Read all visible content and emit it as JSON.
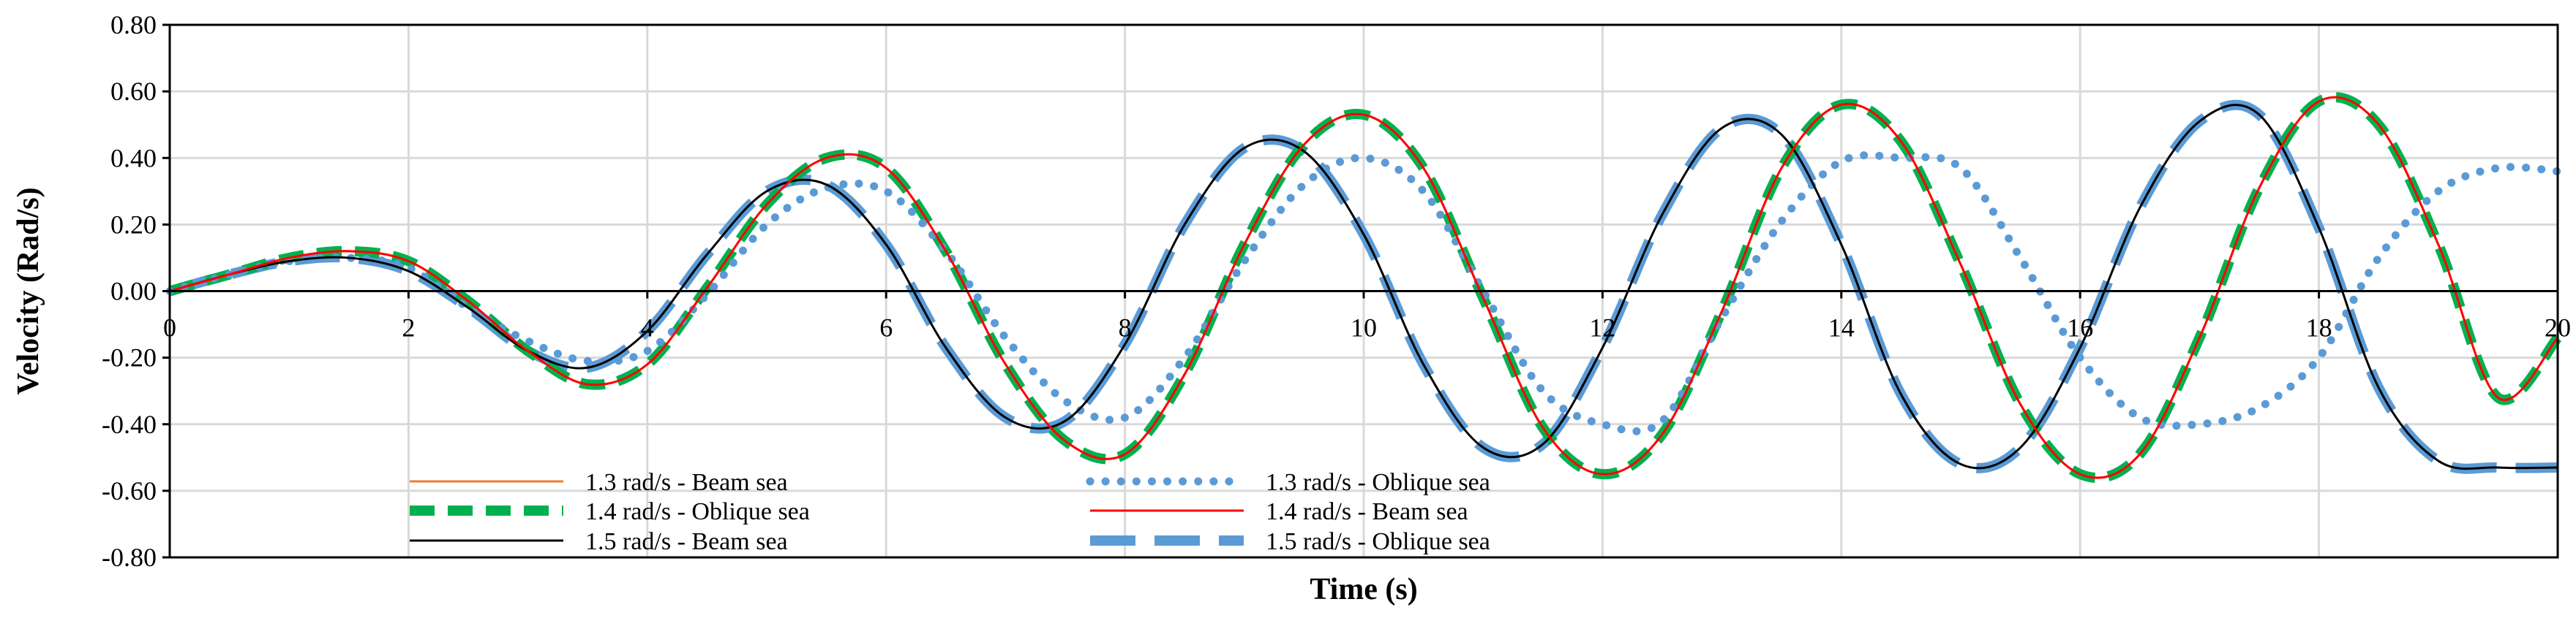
{
  "chart_data": {
    "type": "line",
    "title": "",
    "xlabel": "Time (s)",
    "ylabel": "Velocity (Rad/s)",
    "xlim": [
      0,
      20
    ],
    "ylim": [
      -0.8,
      0.8
    ],
    "x_ticks": [
      0,
      2,
      4,
      6,
      8,
      10,
      12,
      14,
      16,
      18,
      20
    ],
    "x_tick_labels": [
      "0",
      "2",
      "4",
      "6",
      "8",
      "10",
      "12",
      "14",
      "16",
      "18",
      "20"
    ],
    "y_ticks": [
      -0.8,
      -0.6,
      -0.4,
      -0.2,
      0,
      0.2,
      0.4,
      0.6,
      0.8
    ],
    "y_tick_labels": [
      "-0.80",
      "-0.60",
      "-0.40",
      "-0.20",
      "0.00",
      "0.20",
      "0.40",
      "0.60",
      "0.80"
    ],
    "grid": true,
    "legend_position": "bottom-left, two columns",
    "series": [
      {
        "name": "1.3 rad/s - Beam sea",
        "color": "#ED7D31",
        "style": "solid-thin",
        "legend_column": 0,
        "x": [
          0,
          0.5,
          1.0,
          1.5,
          2.0,
          2.5,
          3.0,
          3.5,
          4.0,
          4.5,
          5.0,
          5.5,
          6.0,
          6.5,
          7.0,
          7.5,
          8.0,
          8.5,
          9.0,
          9.5,
          10.0,
          10.5,
          11.0,
          11.5,
          12.0,
          12.5,
          13.0,
          13.5,
          14.0,
          14.5,
          15.0,
          15.5,
          16.0,
          16.5,
          17.0,
          17.5,
          18.0,
          18.5,
          19.0,
          19.5,
          20.0
        ],
        "values": [
          0.0,
          0.05,
          0.1,
          0.12,
          0.09,
          -0.03,
          -0.18,
          -0.28,
          -0.22,
          0.01,
          0.26,
          0.4,
          0.37,
          0.12,
          -0.22,
          -0.45,
          -0.49,
          -0.25,
          0.14,
          0.44,
          0.53,
          0.37,
          -0.02,
          -0.41,
          -0.55,
          -0.43,
          -0.06,
          0.37,
          0.56,
          0.45,
          0.08,
          -0.34,
          -0.55,
          -0.49,
          -0.14,
          0.31,
          0.57,
          0.5,
          0.14,
          -0.32,
          -0.14
        ]
      },
      {
        "name": "1.4 rad/s - Oblique sea",
        "color": "#00B050",
        "style": "thick-dashed",
        "legend_column": 0,
        "x": [
          0,
          0.5,
          1.0,
          1.5,
          2.0,
          2.5,
          3.0,
          3.5,
          4.0,
          4.5,
          5.0,
          5.5,
          6.0,
          6.5,
          7.0,
          7.5,
          8.0,
          8.5,
          9.0,
          9.5,
          10.0,
          10.5,
          11.0,
          11.5,
          12.0,
          12.5,
          13.0,
          13.5,
          14.0,
          14.5,
          15.0,
          15.5,
          16.0,
          16.5,
          17.0,
          17.5,
          18.0,
          18.5,
          19.0,
          19.5,
          20.0
        ],
        "values": [
          0.0,
          0.05,
          0.1,
          0.12,
          0.09,
          -0.03,
          -0.18,
          -0.28,
          -0.22,
          0.01,
          0.26,
          0.4,
          0.37,
          0.12,
          -0.22,
          -0.45,
          -0.49,
          -0.25,
          0.14,
          0.44,
          0.53,
          0.37,
          -0.02,
          -0.41,
          -0.55,
          -0.43,
          -0.06,
          0.37,
          0.56,
          0.45,
          0.08,
          -0.34,
          -0.55,
          -0.49,
          -0.14,
          0.31,
          0.57,
          0.5,
          0.14,
          -0.32,
          -0.14
        ]
      },
      {
        "name": "1.5 rad/s - Beam sea",
        "color": "#000000",
        "style": "solid-thin",
        "legend_column": 0,
        "x": [
          0,
          0.5,
          1.0,
          1.5,
          2.0,
          2.5,
          3.0,
          3.5,
          4.0,
          4.5,
          5.0,
          5.5,
          6.0,
          6.5,
          7.0,
          7.5,
          8.0,
          8.5,
          9.0,
          9.5,
          10.0,
          10.5,
          11.0,
          11.5,
          12.0,
          12.5,
          13.0,
          13.5,
          14.0,
          14.5,
          15.0,
          15.5,
          16.0,
          16.5,
          17.0,
          17.5,
          18.0,
          18.5,
          19.0,
          19.5,
          20.0
        ],
        "values": [
          0.0,
          0.05,
          0.09,
          0.1,
          0.06,
          -0.05,
          -0.18,
          -0.23,
          -0.12,
          0.11,
          0.3,
          0.32,
          0.14,
          -0.17,
          -0.38,
          -0.39,
          -0.16,
          0.2,
          0.43,
          0.42,
          0.17,
          -0.22,
          -0.47,
          -0.46,
          -0.17,
          0.23,
          0.49,
          0.47,
          0.14,
          -0.31,
          -0.52,
          -0.47,
          -0.17,
          0.25,
          0.51,
          0.53,
          0.19,
          -0.29,
          -0.51,
          -0.53,
          -0.53
        ]
      },
      {
        "name": "1.3 rad/s - Oblique sea",
        "color": "#5B9BD5",
        "style": "dotted",
        "legend_column": 1,
        "x": [
          0,
          0.5,
          1.0,
          1.5,
          2.0,
          2.5,
          3.0,
          3.5,
          4.0,
          4.5,
          5.0,
          5.5,
          6.0,
          6.5,
          7.0,
          7.5,
          8.0,
          8.5,
          9.0,
          9.5,
          10.0,
          10.5,
          11.0,
          11.5,
          12.0,
          12.5,
          13.0,
          13.5,
          14.0,
          14.5,
          15.0,
          15.5,
          16.0,
          16.5,
          17.0,
          17.5,
          18.0,
          18.5,
          19.0,
          19.5,
          20.0
        ],
        "values": [
          0.0,
          0.05,
          0.09,
          0.1,
          0.07,
          -0.05,
          -0.15,
          -0.21,
          -0.18,
          -0.01,
          0.2,
          0.31,
          0.3,
          0.12,
          -0.14,
          -0.33,
          -0.38,
          -0.2,
          0.09,
          0.32,
          0.4,
          0.3,
          0.0,
          -0.3,
          -0.4,
          -0.39,
          -0.08,
          0.21,
          0.39,
          0.4,
          0.37,
          0.1,
          -0.2,
          -0.38,
          -0.4,
          -0.35,
          -0.2,
          0.1,
          0.3,
          0.37,
          0.36
        ]
      },
      {
        "name": "1.4 rad/s - Beam sea",
        "color": "#FF0000",
        "style": "solid-thin",
        "legend_column": 1,
        "x": [
          0,
          0.5,
          1.0,
          1.5,
          2.0,
          2.5,
          3.0,
          3.5,
          4.0,
          4.5,
          5.0,
          5.5,
          6.0,
          6.5,
          7.0,
          7.5,
          8.0,
          8.5,
          9.0,
          9.5,
          10.0,
          10.5,
          11.0,
          11.5,
          12.0,
          12.5,
          13.0,
          13.5,
          14.0,
          14.5,
          15.0,
          15.5,
          16.0,
          16.5,
          17.0,
          17.5,
          18.0,
          18.5,
          19.0,
          19.5,
          20.0
        ],
        "values": [
          0.0,
          0.05,
          0.1,
          0.12,
          0.09,
          -0.03,
          -0.18,
          -0.28,
          -0.22,
          0.01,
          0.26,
          0.4,
          0.37,
          0.12,
          -0.22,
          -0.45,
          -0.49,
          -0.25,
          0.14,
          0.44,
          0.53,
          0.37,
          -0.02,
          -0.41,
          -0.55,
          -0.43,
          -0.06,
          0.37,
          0.56,
          0.45,
          0.08,
          -0.34,
          -0.55,
          -0.49,
          -0.14,
          0.31,
          0.57,
          0.5,
          0.14,
          -0.32,
          -0.14
        ]
      },
      {
        "name": "1.5 rad/s - Oblique sea",
        "color": "#5B9BD5",
        "style": "long-dashed",
        "legend_column": 1,
        "x": [
          0,
          0.5,
          1.0,
          1.5,
          2.0,
          2.5,
          3.0,
          3.5,
          4.0,
          4.5,
          5.0,
          5.5,
          6.0,
          6.5,
          7.0,
          7.5,
          8.0,
          8.5,
          9.0,
          9.5,
          10.0,
          10.5,
          11.0,
          11.5,
          12.0,
          12.5,
          13.0,
          13.5,
          14.0,
          14.5,
          15.0,
          15.5,
          16.0,
          16.5,
          17.0,
          17.5,
          18.0,
          18.5,
          19.0,
          19.5,
          20.0
        ],
        "values": [
          0.0,
          0.05,
          0.09,
          0.1,
          0.06,
          -0.05,
          -0.18,
          -0.23,
          -0.12,
          0.11,
          0.3,
          0.32,
          0.14,
          -0.17,
          -0.38,
          -0.39,
          -0.16,
          0.2,
          0.43,
          0.42,
          0.17,
          -0.22,
          -0.47,
          -0.46,
          -0.17,
          0.23,
          0.49,
          0.47,
          0.14,
          -0.31,
          -0.52,
          -0.47,
          -0.17,
          0.25,
          0.51,
          0.53,
          0.19,
          -0.29,
          -0.51,
          -0.53,
          -0.53
        ]
      }
    ]
  }
}
